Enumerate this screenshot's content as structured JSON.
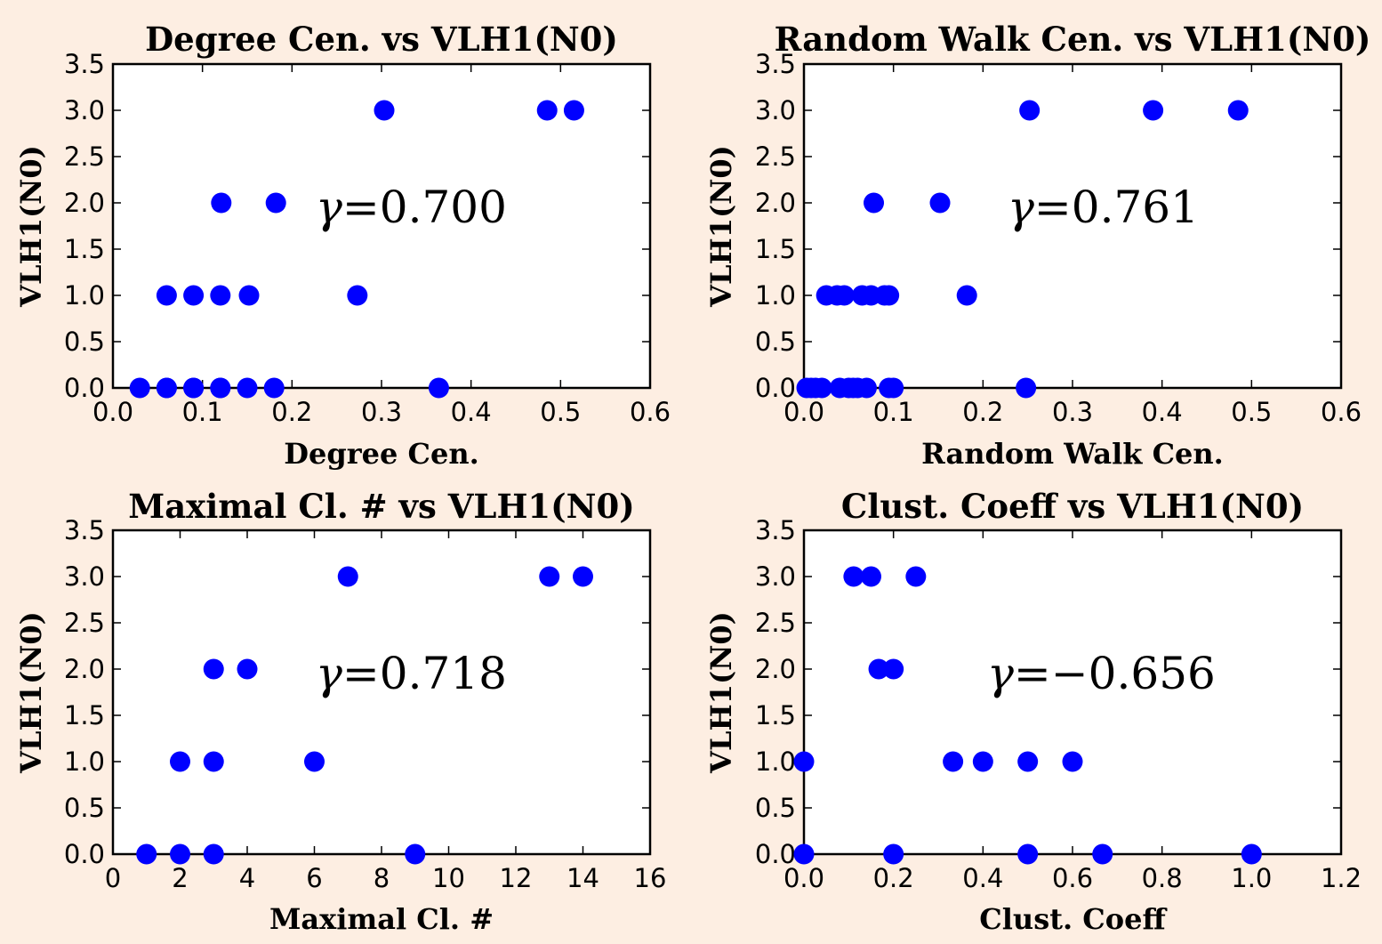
{
  "chart_data": [
    {
      "type": "scatter",
      "title": "Degree Cen. vs VLH1(N0)",
      "xlabel": "Degree Cen.",
      "ylabel": "VLH1(N0)",
      "xlim": [
        0,
        0.6
      ],
      "ylim": [
        0,
        3.5
      ],
      "xticks": [
        "0.0",
        "0.1",
        "0.2",
        "0.3",
        "0.4",
        "0.5",
        "0.6"
      ],
      "yticks": [
        "0.0",
        "0.5",
        "1.0",
        "1.5",
        "2.0",
        "2.5",
        "3.0",
        "3.5"
      ],
      "annotation": {
        "symbol": "γ",
        "text": "=0.700"
      },
      "x": [
        0.03,
        0.06,
        0.06,
        0.09,
        0.09,
        0.12,
        0.12,
        0.15,
        0.18,
        0.364,
        0.06,
        0.09,
        0.12,
        0.152,
        0.273,
        0.121,
        0.182,
        0.303,
        0.485,
        0.515
      ],
      "y": [
        0,
        0,
        0,
        0,
        0,
        0,
        0,
        0,
        0,
        0,
        1,
        1,
        1,
        1,
        1,
        2,
        2,
        3,
        3,
        3
      ]
    },
    {
      "type": "scatter",
      "title": "Random Walk Cen. vs VLH1(N0)",
      "xlabel": "Random Walk Cen.",
      "ylabel": "VLH1(N0)",
      "xlim": [
        0,
        0.6
      ],
      "ylim": [
        0,
        3.5
      ],
      "xticks": [
        "0.0",
        "0.1",
        "0.2",
        "0.3",
        "0.4",
        "0.5",
        "0.6"
      ],
      "yticks": [
        "0.0",
        "0.5",
        "1.0",
        "1.5",
        "2.0",
        "2.5",
        "3.0",
        "3.5"
      ],
      "annotation": {
        "symbol": "γ",
        "text": "=0.761"
      },
      "x": [
        0.003,
        0.008,
        0.013,
        0.02,
        0.04,
        0.05,
        0.055,
        0.06,
        0.07,
        0.095,
        0.1,
        0.248,
        0.025,
        0.037,
        0.045,
        0.065,
        0.075,
        0.09,
        0.095,
        0.182,
        0.078,
        0.152,
        0.252,
        0.39,
        0.485
      ],
      "y": [
        0,
        0,
        0,
        0,
        0,
        0,
        0,
        0,
        0,
        0,
        0,
        0,
        1,
        1,
        1,
        1,
        1,
        1,
        1,
        1,
        2,
        2,
        3,
        3,
        3
      ]
    },
    {
      "type": "scatter",
      "title": "Maximal Cl. # vs VLH1(N0)",
      "xlabel": "Maximal Cl. #",
      "ylabel": "VLH1(N0)",
      "xlim": [
        0,
        16
      ],
      "ylim": [
        0,
        3.5
      ],
      "xticks": [
        "0",
        "2",
        "4",
        "6",
        "8",
        "10",
        "12",
        "14",
        "16"
      ],
      "yticks": [
        "0.0",
        "0.5",
        "1.0",
        "1.5",
        "2.0",
        "2.5",
        "3.0",
        "3.5"
      ],
      "annotation": {
        "symbol": "γ",
        "text": "=0.718"
      },
      "x": [
        1,
        2,
        3,
        9,
        2,
        3,
        6,
        3,
        4,
        7,
        13,
        14
      ],
      "y": [
        0,
        0,
        0,
        0,
        1,
        1,
        1,
        2,
        2,
        3,
        3,
        3
      ]
    },
    {
      "type": "scatter",
      "title": "Clust. Coeff vs VLH1(N0)",
      "xlabel": "Clust. Coeff",
      "ylabel": "VLH1(N0)",
      "xlim": [
        0,
        1.2
      ],
      "ylim": [
        0,
        3.5
      ],
      "xticks": [
        "0.0",
        "0.2",
        "0.4",
        "0.6",
        "0.8",
        "1.0",
        "1.2"
      ],
      "yticks": [
        "0.0",
        "0.5",
        "1.0",
        "1.5",
        "2.0",
        "2.5",
        "3.0",
        "3.5"
      ],
      "annotation": {
        "symbol": "γ",
        "text": "=−0.656"
      },
      "x": [
        0.0,
        0.2,
        0.5,
        0.667,
        1.0,
        0.0,
        0.333,
        0.4,
        0.5,
        0.6,
        0.167,
        0.2,
        0.111,
        0.15,
        0.25
      ],
      "y": [
        0,
        0,
        0,
        0,
        0,
        1,
        1,
        1,
        1,
        1,
        2,
        2,
        3,
        3,
        3
      ]
    }
  ]
}
